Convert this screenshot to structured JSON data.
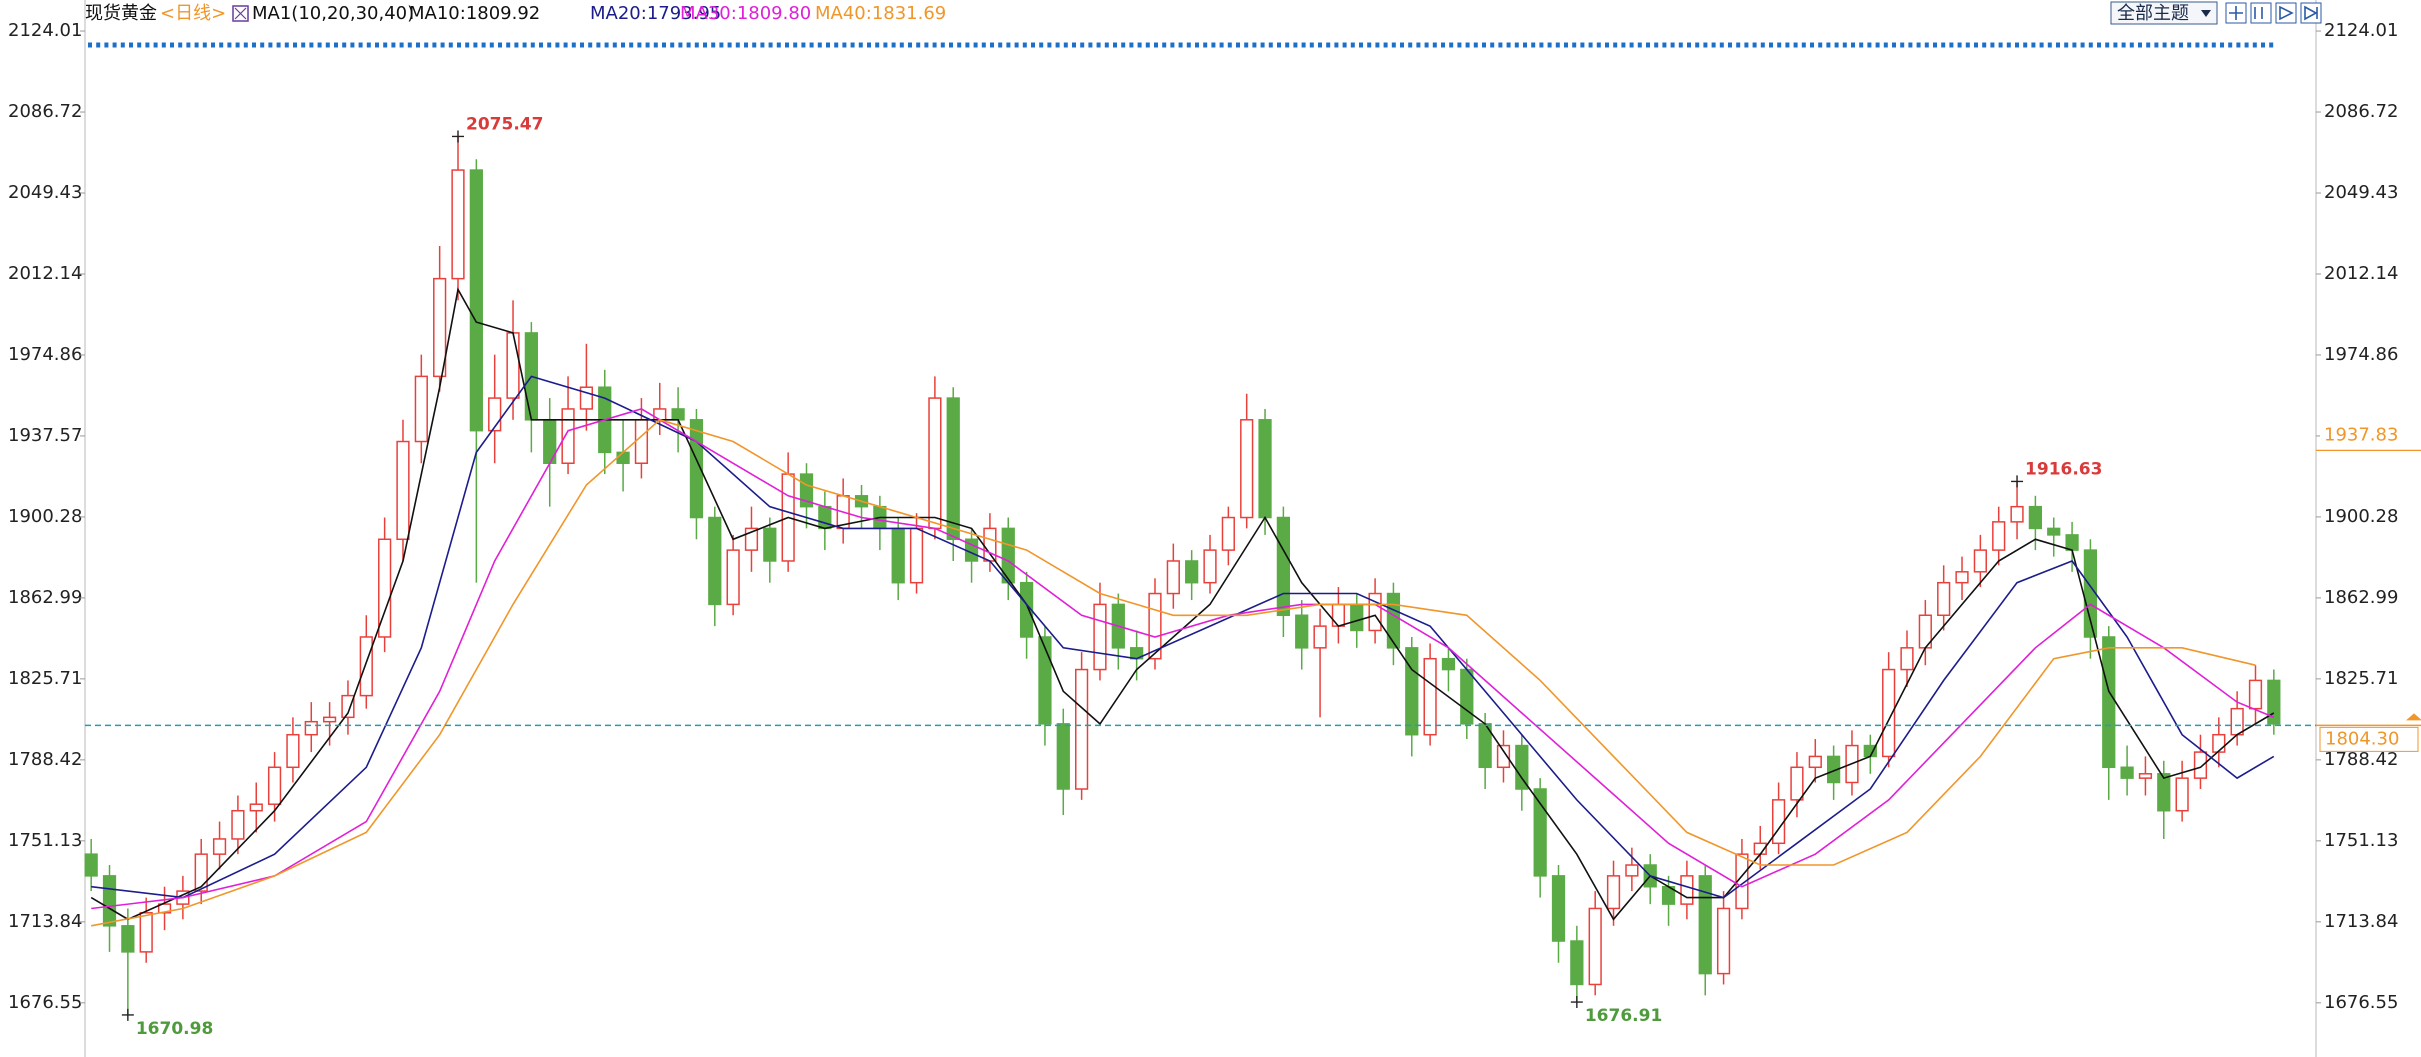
{
  "chart_data": {
    "type": "candlestick",
    "title": "现货黄金",
    "period": "<日线>",
    "indicator": "MA1(10,20,30,40)",
    "button": "全部主题",
    "up_color": "#e8413c",
    "down_color": "#5aaa46",
    "ylim": [
      1651.6,
      2138.3
    ],
    "yticks": [
      1676.55,
      1713.84,
      1751.13,
      1788.42,
      1825.71,
      1862.99,
      1900.28,
      1937.57,
      1974.86,
      2012.14,
      2049.43,
      2086.72,
      2124.01
    ],
    "xlim": [
      -0.5,
      119.5
    ],
    "last_price": {
      "value": 1804.3,
      "label": "1804.30"
    },
    "right_marker": 1937.83,
    "candles": [
      [
        1745,
        1752,
        1728,
        1735
      ],
      [
        1735,
        1740,
        1700,
        1712
      ],
      [
        1712,
        1720,
        1670.98,
        1700
      ],
      [
        1700,
        1725,
        1695,
        1718
      ],
      [
        1718,
        1730,
        1710,
        1722
      ],
      [
        1722,
        1735,
        1715,
        1728
      ],
      [
        1728,
        1752,
        1722,
        1745
      ],
      [
        1745,
        1760,
        1738,
        1752
      ],
      [
        1752,
        1772,
        1745,
        1765
      ],
      [
        1765,
        1778,
        1755,
        1768
      ],
      [
        1768,
        1792,
        1760,
        1785
      ],
      [
        1785,
        1808,
        1778,
        1800
      ],
      [
        1800,
        1815,
        1792,
        1806
      ],
      [
        1806,
        1815,
        1795,
        1808
      ],
      [
        1808,
        1825,
        1800,
        1818
      ],
      [
        1818,
        1855,
        1812,
        1845
      ],
      [
        1845,
        1900,
        1838,
        1890
      ],
      [
        1890,
        1945,
        1880,
        1935
      ],
      [
        1935,
        1975,
        1925,
        1965
      ],
      [
        1965,
        2025,
        1958,
        2010
      ],
      [
        2010,
        2075.47,
        2000,
        2060
      ],
      [
        2060,
        2065,
        1870,
        1940
      ],
      [
        1940,
        1975,
        1925,
        1955
      ],
      [
        1955,
        2000,
        1945,
        1985
      ],
      [
        1985,
        1990,
        1930,
        1945
      ],
      [
        1945,
        1955,
        1905,
        1925
      ],
      [
        1925,
        1965,
        1920,
        1950
      ],
      [
        1950,
        1980,
        1940,
        1960
      ],
      [
        1960,
        1968,
        1920,
        1930
      ],
      [
        1930,
        1945,
        1912,
        1925
      ],
      [
        1925,
        1955,
        1918,
        1945
      ],
      [
        1945,
        1962,
        1938,
        1950
      ],
      [
        1950,
        1960,
        1930,
        1945
      ],
      [
        1945,
        1950,
        1890,
        1900
      ],
      [
        1900,
        1905,
        1850,
        1860
      ],
      [
        1860,
        1892,
        1855,
        1885
      ],
      [
        1885,
        1905,
        1875,
        1895
      ],
      [
        1895,
        1900,
        1870,
        1880
      ],
      [
        1880,
        1930,
        1875,
        1920
      ],
      [
        1920,
        1925,
        1895,
        1905
      ],
      [
        1905,
        1912,
        1885,
        1895
      ],
      [
        1895,
        1918,
        1888,
        1910
      ],
      [
        1910,
        1915,
        1895,
        1905
      ],
      [
        1905,
        1910,
        1885,
        1895
      ],
      [
        1895,
        1900,
        1862,
        1870
      ],
      [
        1870,
        1902,
        1865,
        1895
      ],
      [
        1895,
        1965,
        1890,
        1955
      ],
      [
        1955,
        1960,
        1880,
        1890
      ],
      [
        1890,
        1895,
        1870,
        1880
      ],
      [
        1880,
        1902,
        1875,
        1895
      ],
      [
        1895,
        1900,
        1862,
        1870
      ],
      [
        1870,
        1875,
        1835,
        1845
      ],
      [
        1845,
        1850,
        1795,
        1805
      ],
      [
        1805,
        1812,
        1763,
        1775
      ],
      [
        1775,
        1838,
        1770,
        1830
      ],
      [
        1830,
        1870,
        1825,
        1860
      ],
      [
        1860,
        1865,
        1830,
        1840
      ],
      [
        1840,
        1848,
        1825,
        1835
      ],
      [
        1835,
        1872,
        1830,
        1865
      ],
      [
        1865,
        1888,
        1858,
        1880
      ],
      [
        1880,
        1885,
        1862,
        1870
      ],
      [
        1870,
        1892,
        1865,
        1885
      ],
      [
        1885,
        1905,
        1878,
        1900
      ],
      [
        1900,
        1957,
        1895,
        1945
      ],
      [
        1945,
        1950,
        1892,
        1900
      ],
      [
        1900,
        1905,
        1845,
        1855
      ],
      [
        1855,
        1862,
        1830,
        1840
      ],
      [
        1840,
        1858,
        1808,
        1850
      ],
      [
        1850,
        1868,
        1842,
        1860
      ],
      [
        1860,
        1865,
        1840,
        1848
      ],
      [
        1848,
        1872,
        1842,
        1865
      ],
      [
        1865,
        1870,
        1832,
        1840
      ],
      [
        1840,
        1845,
        1790,
        1800
      ],
      [
        1800,
        1842,
        1795,
        1835
      ],
      [
        1835,
        1840,
        1820,
        1830
      ],
      [
        1830,
        1835,
        1798,
        1805
      ],
      [
        1805,
        1810,
        1775,
        1785
      ],
      [
        1785,
        1802,
        1778,
        1795
      ],
      [
        1795,
        1800,
        1765,
        1775
      ],
      [
        1775,
        1780,
        1725,
        1735
      ],
      [
        1735,
        1740,
        1695,
        1705
      ],
      [
        1705,
        1712,
        1676.91,
        1685
      ],
      [
        1685,
        1728,
        1680,
        1720
      ],
      [
        1720,
        1742,
        1712,
        1735
      ],
      [
        1735,
        1748,
        1728,
        1740
      ],
      [
        1740,
        1745,
        1722,
        1730
      ],
      [
        1730,
        1735,
        1712,
        1722
      ],
      [
        1722,
        1742,
        1715,
        1735
      ],
      [
        1735,
        1740,
        1680,
        1690
      ],
      [
        1690,
        1728,
        1685,
        1720
      ],
      [
        1720,
        1752,
        1715,
        1745
      ],
      [
        1745,
        1758,
        1738,
        1750
      ],
      [
        1750,
        1778,
        1745,
        1770
      ],
      [
        1770,
        1792,
        1762,
        1785
      ],
      [
        1785,
        1798,
        1778,
        1790
      ],
      [
        1790,
        1795,
        1770,
        1778
      ],
      [
        1778,
        1802,
        1772,
        1795
      ],
      [
        1795,
        1800,
        1782,
        1790
      ],
      [
        1790,
        1838,
        1785,
        1830
      ],
      [
        1830,
        1848,
        1822,
        1840
      ],
      [
        1840,
        1862,
        1832,
        1855
      ],
      [
        1855,
        1878,
        1848,
        1870
      ],
      [
        1870,
        1882,
        1862,
        1875
      ],
      [
        1875,
        1892,
        1868,
        1885
      ],
      [
        1885,
        1905,
        1878,
        1898
      ],
      [
        1898,
        1916.63,
        1890,
        1905
      ],
      [
        1905,
        1910,
        1885,
        1895
      ],
      [
        1895,
        1900,
        1882,
        1892
      ],
      [
        1892,
        1898,
        1875,
        1885
      ],
      [
        1885,
        1890,
        1835,
        1845
      ],
      [
        1845,
        1850,
        1770,
        1785
      ],
      [
        1785,
        1795,
        1772,
        1780
      ],
      [
        1780,
        1790,
        1772,
        1782
      ],
      [
        1782,
        1788,
        1752,
        1765
      ],
      [
        1765,
        1788,
        1760,
        1780
      ],
      [
        1780,
        1800,
        1775,
        1792
      ],
      [
        1792,
        1808,
        1785,
        1800
      ],
      [
        1800,
        1820,
        1795,
        1812
      ],
      [
        1812,
        1832,
        1805,
        1825
      ],
      [
        1825,
        1830,
        1800,
        1805
      ]
    ],
    "series": [
      {
        "name": "MA10:1809.92",
        "color": "#111111",
        "x": [
          0,
          2,
          6,
          10,
          14,
          17,
          19,
          20,
          21,
          23,
          24,
          26,
          29,
          32,
          35,
          38,
          40,
          43,
          46,
          48,
          51,
          53,
          55,
          57,
          61,
          64,
          66,
          68,
          70,
          72,
          76,
          78,
          81,
          83,
          85,
          87,
          89,
          91,
          94,
          97,
          100,
          104,
          106,
          108,
          110,
          113,
          115,
          117,
          119
        ],
        "values": [
          1725,
          1715,
          1730,
          1765,
          1810,
          1880,
          1960,
          2005,
          1990,
          1985,
          1945,
          1945,
          1945,
          1945,
          1890,
          1900,
          1895,
          1900,
          1900,
          1895,
          1860,
          1820,
          1805,
          1830,
          1860,
          1900,
          1870,
          1850,
          1855,
          1830,
          1805,
          1780,
          1745,
          1715,
          1735,
          1725,
          1725,
          1745,
          1780,
          1790,
          1840,
          1880,
          1890,
          1885,
          1820,
          1780,
          1785,
          1800,
          1810
        ]
      },
      {
        "name": "MA20:1793.95",
        "color": "#1c1c8c",
        "x": [
          0,
          5,
          10,
          15,
          18,
          21,
          24,
          28,
          33,
          37,
          41,
          45,
          49,
          53,
          57,
          61,
          65,
          69,
          73,
          77,
          81,
          85,
          89,
          93,
          97,
          101,
          105,
          108,
          111,
          114,
          117,
          119
        ],
        "values": [
          1730,
          1725,
          1745,
          1785,
          1840,
          1930,
          1965,
          1955,
          1935,
          1905,
          1895,
          1895,
          1880,
          1840,
          1835,
          1850,
          1865,
          1865,
          1850,
          1810,
          1770,
          1735,
          1725,
          1750,
          1775,
          1825,
          1870,
          1880,
          1845,
          1800,
          1780,
          1790
        ]
      },
      {
        "name": "MA30:1809.80",
        "color": "#e020d8",
        "x": [
          0,
          5,
          10,
          15,
          19,
          22,
          26,
          30,
          34,
          38,
          42,
          46,
          50,
          54,
          58,
          62,
          66,
          70,
          74,
          78,
          82,
          86,
          90,
          94,
          98,
          102,
          106,
          109,
          113,
          117,
          119
        ],
        "values": [
          1720,
          1725,
          1735,
          1760,
          1820,
          1880,
          1940,
          1950,
          1930,
          1910,
          1900,
          1895,
          1880,
          1855,
          1845,
          1855,
          1860,
          1860,
          1840,
          1810,
          1780,
          1750,
          1730,
          1745,
          1770,
          1805,
          1840,
          1860,
          1840,
          1815,
          1808
        ]
      },
      {
        "name": "MA40:1831.69",
        "color": "#f0962a",
        "x": [
          0,
          5,
          10,
          15,
          19,
          23,
          27,
          31,
          35,
          39,
          43,
          47,
          51,
          55,
          59,
          63,
          67,
          71,
          75,
          79,
          83,
          87,
          91,
          95,
          99,
          103,
          107,
          110,
          114,
          118
        ],
        "values": [
          1712,
          1720,
          1735,
          1755,
          1800,
          1860,
          1915,
          1945,
          1935,
          1915,
          1905,
          1895,
          1885,
          1865,
          1855,
          1855,
          1860,
          1860,
          1855,
          1825,
          1790,
          1755,
          1740,
          1740,
          1755,
          1790,
          1835,
          1840,
          1840,
          1832
        ]
      }
    ]
  }
}
